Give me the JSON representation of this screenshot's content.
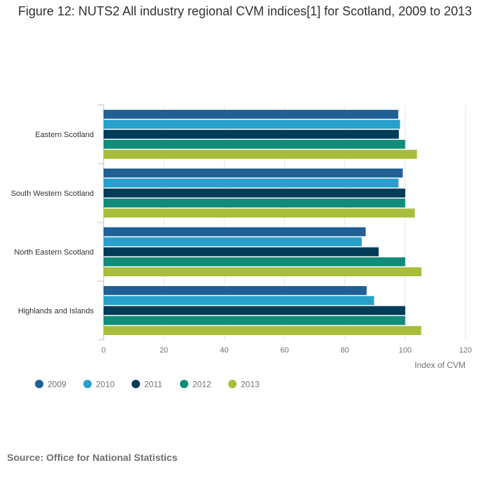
{
  "chart_data": {
    "type": "bar",
    "orientation": "horizontal",
    "title": "Figure 12: NUTS2 All industry regional CVM indices[1] for Scotland, 2009 to 2013",
    "categories": [
      "Eastern Scotland",
      "South Western Scotland",
      "North Eastern Scotland",
      "Highlands and Islands"
    ],
    "series": [
      {
        "name": "2009",
        "color": "#206095",
        "values": [
          97.7,
          99.2,
          86.9,
          87.2
        ]
      },
      {
        "name": "2010",
        "color": "#27a0cc",
        "values": [
          98.3,
          97.8,
          85.6,
          89.7
        ]
      },
      {
        "name": "2011",
        "color": "#003c57",
        "values": [
          97.9,
          100.0,
          91.2,
          100.0
        ]
      },
      {
        "name": "2012",
        "color": "#118c7b",
        "values": [
          100.0,
          100.0,
          100.0,
          100.0
        ]
      },
      {
        "name": "2013",
        "color": "#a8bd3a",
        "values": [
          103.9,
          103.2,
          105.4,
          105.3
        ]
      }
    ],
    "xlabel": "Index of CVM",
    "xlim": [
      0,
      120
    ],
    "xticks": [
      0,
      20,
      40,
      60,
      80,
      100,
      120
    ],
    "grid": true,
    "legend_position": "bottom-left"
  },
  "source": "Source: Office for National Statistics"
}
